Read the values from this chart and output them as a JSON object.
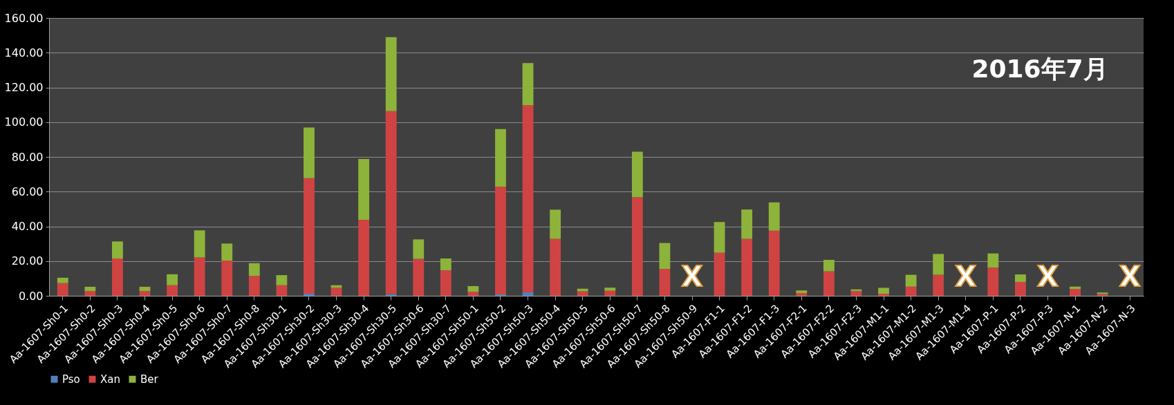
{
  "chart_data": {
    "type": "bar",
    "stacked": true,
    "categories": [
      "Aa-1607-Sh0-1",
      "Aa-1607-Sh0-2",
      "Aa-1607-Sh0-3",
      "Aa-1607-Sh0-4",
      "Aa-1607-Sh0-5",
      "Aa-1607-Sh0-6",
      "Aa-1607-Sh0-7",
      "Aa-1607-Sh0-8",
      "Aa-1607-Sh30-1",
      "Aa-1607-Sh30-2",
      "Aa-1607-Sh30-3",
      "Aa-1607-Sh30-4",
      "Aa-1607-Sh30-5",
      "Aa-1607-Sh30-6",
      "Aa-1607-Sh30-7",
      "Aa-1607-Sh50-1",
      "Aa-1607-Sh50-2",
      "Aa-1607-Sh50-3",
      "Aa-1607-Sh50-4",
      "Aa-1607-Sh50-5",
      "Aa-1607-Sh50-6",
      "Aa-1607-Sh50-7",
      "Aa-1607-Sh50-8",
      "Aa-1607-Sh50-9",
      "Aa-1607-F1-1",
      "Aa-1607-F1-2",
      "Aa-1607-F1-3",
      "Aa-1607-F2-1",
      "Aa-1607-F2-2",
      "Aa-1607-F2-3",
      "Aa-1607-M1-1",
      "Aa-1607-M1-2",
      "Aa-1607-M1-3",
      "Aa-1607-M1-4",
      "Aa-1607-P-1",
      "Aa-1607-P-2",
      "Aa-1607-P-3",
      "Aa-1607-N-1",
      "Aa-1607-N-2",
      "Aa-1607-N-3"
    ],
    "series": [
      {
        "name": "Pso",
        "color": "#4f81bd",
        "values": [
          0,
          0,
          0,
          0,
          0,
          0,
          0,
          0,
          0,
          1.2,
          0,
          0,
          1.0,
          0,
          0,
          0,
          0.8,
          2.0,
          0,
          0,
          0,
          0,
          0,
          null,
          0,
          0,
          0,
          0,
          0,
          0,
          0,
          0,
          0,
          null,
          0,
          0,
          null,
          0,
          0,
          null
        ]
      },
      {
        "name": "Xan",
        "color": "#d04343",
        "values": [
          7.3,
          2.7,
          21.5,
          2.7,
          6.1,
          22.1,
          20.3,
          11.5,
          6.1,
          66.6,
          4.6,
          43.8,
          105.4,
          21.3,
          14.7,
          2.3,
          62.1,
          107.8,
          32.8,
          2.6,
          2.9,
          56.8,
          15.5,
          null,
          24.8,
          32.8,
          37.5,
          1.6,
          14.1,
          2.7,
          1.2,
          5.3,
          12.1,
          null,
          16.3,
          8.0,
          null,
          3.9,
          1.0,
          null
        ]
      },
      {
        "name": "Ber",
        "color": "#8db33a",
        "values": [
          3.1,
          2.5,
          9.8,
          2.5,
          6.3,
          15.6,
          9.8,
          7.3,
          5.8,
          29.1,
          1.5,
          35.0,
          42.6,
          11.2,
          6.8,
          3.3,
          33.1,
          24.2,
          16.8,
          1.5,
          1.8,
          26.2,
          14.9,
          null,
          17.7,
          16.9,
          16.3,
          1.5,
          6.6,
          1.0,
          3.4,
          6.8,
          12.0,
          null,
          8.1,
          4.3,
          null,
          1.4,
          0.9,
          null
        ]
      }
    ],
    "ylim": [
      0,
      160
    ],
    "yticks": [
      {
        "value": 0,
        "label": "0.00"
      },
      {
        "value": 20,
        "label": "20.00"
      },
      {
        "value": 40,
        "label": "40.00"
      },
      {
        "value": 60,
        "label": "60.00"
      },
      {
        "value": 80,
        "label": "80.00"
      },
      {
        "value": 100,
        "label": "100.00"
      },
      {
        "value": 120,
        "label": "120.00"
      },
      {
        "value": 140,
        "label": "140.00"
      },
      {
        "value": 160,
        "label": "160.00"
      }
    ],
    "grid": "y",
    "legend": "bottom",
    "annotations": [
      "2016年7月",
      "X",
      "X",
      "X",
      "X"
    ]
  }
}
